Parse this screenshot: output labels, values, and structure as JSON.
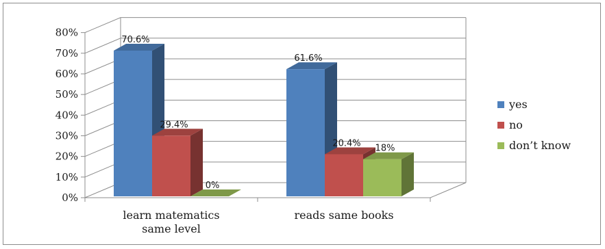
{
  "chart_data": {
    "type": "bar",
    "style": "3d-clustered-column",
    "categories": [
      "learn matematics same level",
      "reads same books"
    ],
    "category_lines": [
      [
        "learn matematics",
        "same level"
      ],
      [
        "reads same books"
      ]
    ],
    "series": [
      {
        "name": "yes",
        "values": [
          70.6,
          61.6
        ],
        "labels": [
          "70.6%",
          "61.6%"
        ],
        "color": "#4f81bd"
      },
      {
        "name": "no",
        "values": [
          29.4,
          20.4
        ],
        "labels": [
          "29.4%",
          "20.4%"
        ],
        "color": "#c0504d"
      },
      {
        "name": "don't know",
        "values": [
          0,
          18
        ],
        "labels": [
          "0%",
          "18%"
        ],
        "color": "#9bbb59"
      }
    ],
    "legend_labels": [
      "yes",
      "no",
      "don’t know"
    ],
    "y_ticks": [
      "0%",
      "10%",
      "20%",
      "30%",
      "40%",
      "50%",
      "60%",
      "70%",
      "80%"
    ],
    "ylim": [
      0,
      80
    ],
    "grid": true,
    "legend_position": "right",
    "title": "",
    "xlabel": "",
    "ylabel": ""
  }
}
